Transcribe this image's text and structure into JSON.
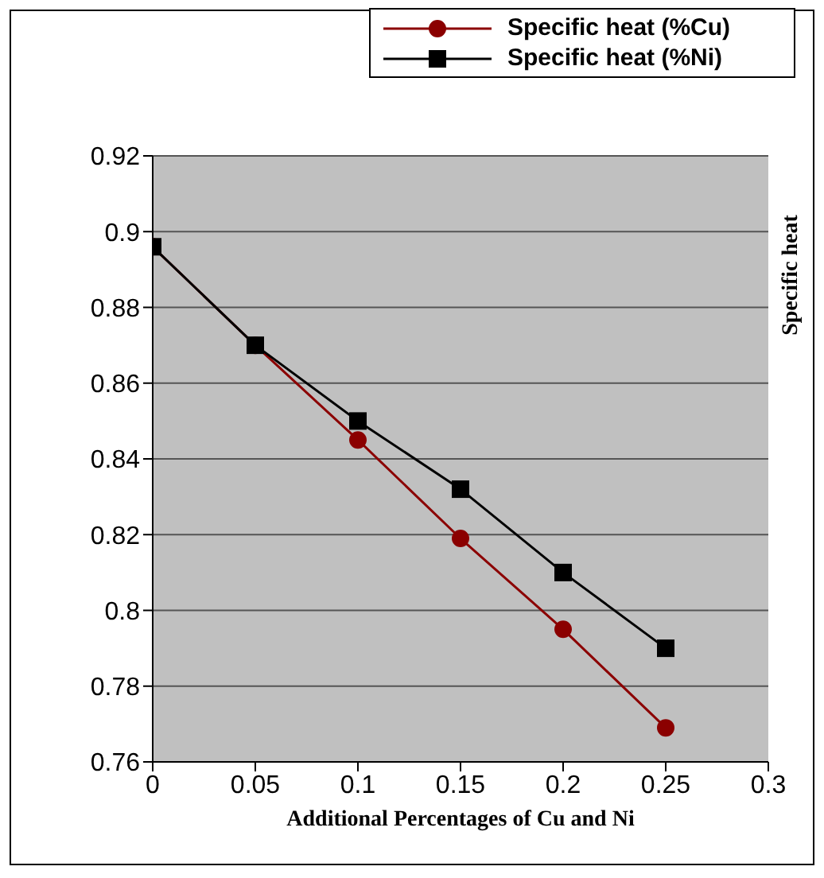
{
  "chart_data": {
    "type": "line",
    "xlabel": "Additional Percentages of Cu and Ni",
    "ylabel": "Specific heat",
    "x": [
      0,
      0.05,
      0.1,
      0.15,
      0.2,
      0.25
    ],
    "series": [
      {
        "name": "Specific heat (%Cu)",
        "color": "#8b0000",
        "marker": "circle",
        "values": [
          0.896,
          0.87,
          0.845,
          0.819,
          0.795,
          0.769
        ]
      },
      {
        "name": "Specific heat (%Ni)",
        "color": "#000000",
        "marker": "square",
        "values": [
          0.896,
          0.87,
          0.85,
          0.832,
          0.81,
          0.79
        ]
      }
    ],
    "xlim": [
      0,
      0.3
    ],
    "xticks": [
      0,
      0.05,
      0.1,
      0.15,
      0.2,
      0.25,
      0.3
    ],
    "ylim": [
      0.76,
      0.92
    ],
    "yticks": [
      0.76,
      0.78,
      0.8,
      0.82,
      0.84,
      0.86,
      0.88,
      0.9,
      0.92
    ],
    "grid": "y",
    "legend": "top right",
    "line_style": "solid"
  }
}
